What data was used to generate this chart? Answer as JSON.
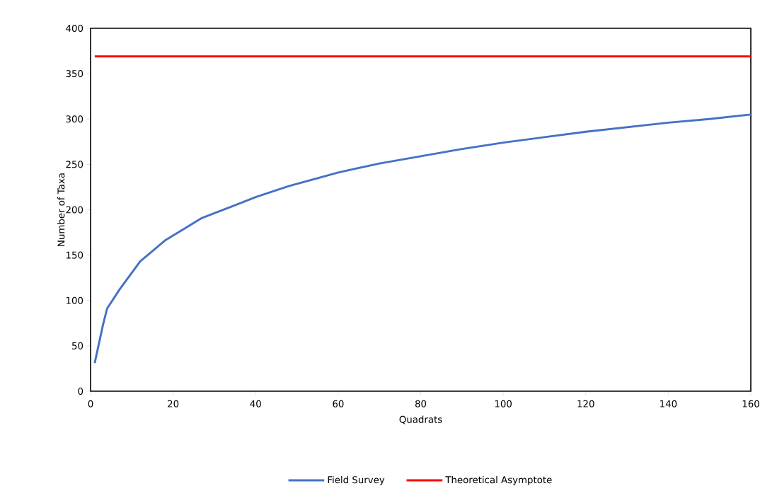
{
  "chart_data": {
    "type": "line",
    "xlabel": "Quadrats",
    "ylabel": "Number of Taxa",
    "xlim": [
      0,
      160
    ],
    "ylim": [
      0,
      400
    ],
    "xticks": [
      0,
      20,
      40,
      60,
      80,
      100,
      120,
      140,
      160
    ],
    "yticks": [
      0,
      50,
      100,
      150,
      200,
      250,
      300,
      350,
      400
    ],
    "grid": false,
    "legend": "bottom",
    "marker": "none",
    "line_style": "solid",
    "series": [
      {
        "name": "Field Survey",
        "color": "#4472c4",
        "x": [
          1,
          3,
          4,
          7,
          12,
          18,
          27,
          35,
          40,
          48,
          60,
          70,
          80,
          90,
          100,
          110,
          120,
          130,
          140,
          150,
          160
        ],
        "values": [
          31,
          73,
          91,
          112,
          143,
          166,
          191,
          205,
          214,
          226,
          241,
          251,
          259,
          267,
          274,
          280,
          286,
          291,
          296,
          300,
          305
        ]
      },
      {
        "name": "Theoretical Asymptote",
        "color": "#ff0000",
        "x": [
          1,
          160
        ],
        "values": [
          369,
          369
        ]
      }
    ]
  }
}
